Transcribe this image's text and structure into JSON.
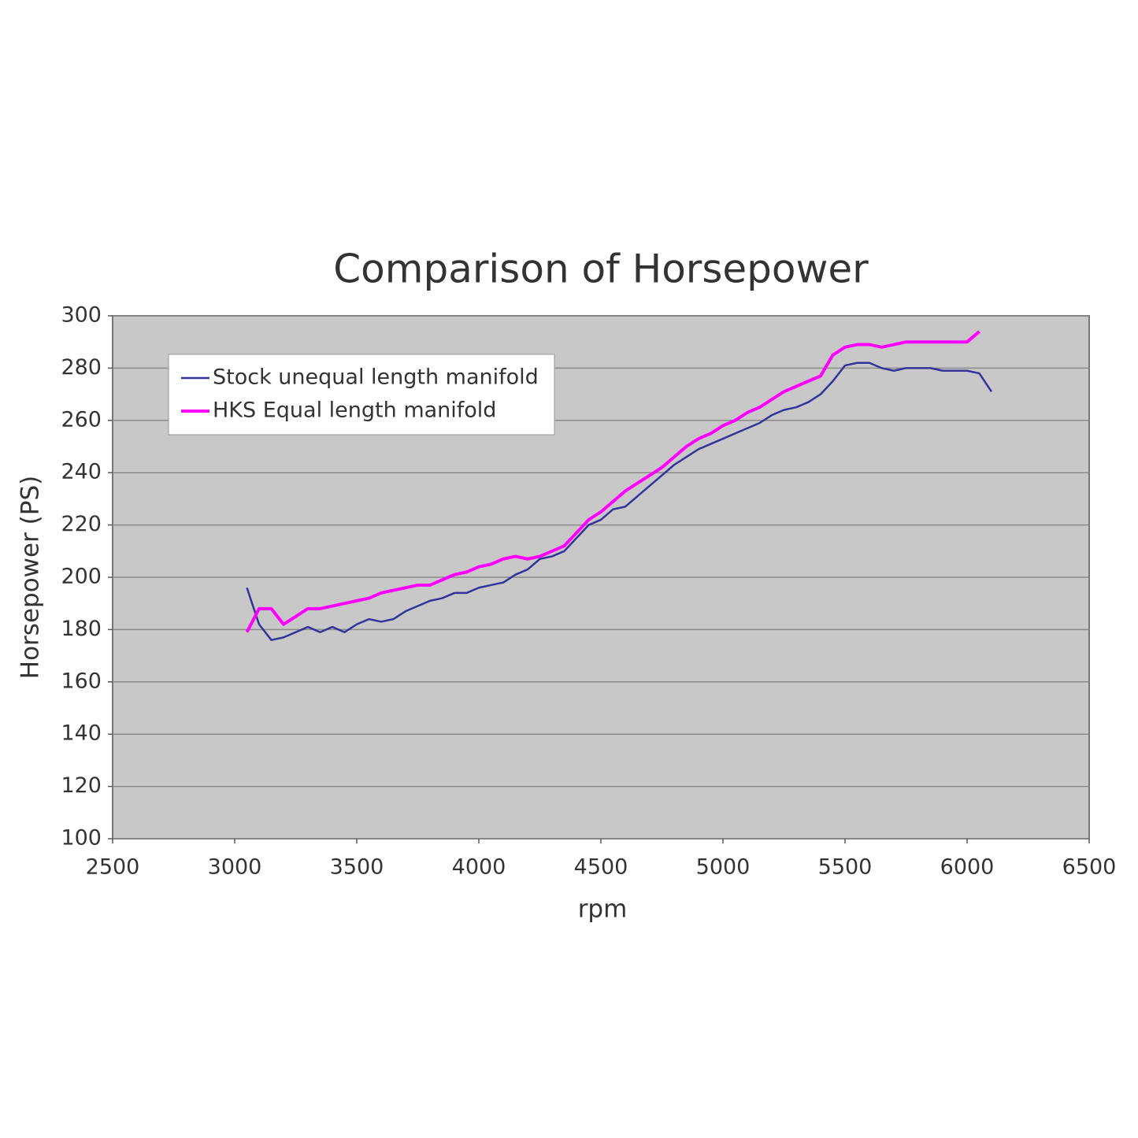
{
  "chart_data": {
    "type": "line",
    "title": "Comparison of Horsepower",
    "x_label": "rpm",
    "y_label": "Horsepower (PS)",
    "x": [
      3050,
      3100,
      3150,
      3200,
      3250,
      3300,
      3350,
      3400,
      3450,
      3500,
      3550,
      3600,
      3650,
      3700,
      3750,
      3800,
      3850,
      3900,
      3950,
      4000,
      4050,
      4100,
      4150,
      4200,
      4250,
      4300,
      4350,
      4400,
      4450,
      4500,
      4550,
      4600,
      4650,
      4700,
      4750,
      4800,
      4850,
      4900,
      4950,
      5000,
      5050,
      5100,
      5150,
      5200,
      5250,
      5300,
      5350,
      5400,
      5450,
      5500,
      5550,
      5600,
      5650,
      5700,
      5750,
      5800,
      5850,
      5900,
      5950,
      6000,
      6050,
      6100
    ],
    "series": [
      {
        "name": "Stock unequal length manifold",
        "color": "#333399",
        "values": [
          196,
          182,
          176,
          177,
          179,
          181,
          179,
          181,
          179,
          182,
          184,
          183,
          184,
          187,
          189,
          191,
          192,
          194,
          194,
          196,
          197,
          198,
          201,
          203,
          207,
          208,
          210,
          215,
          220,
          222,
          226,
          227,
          231,
          235,
          239,
          243,
          246,
          249,
          251,
          253,
          255,
          257,
          259,
          262,
          264,
          265,
          267,
          270,
          275,
          281,
          282,
          282,
          280,
          279,
          280,
          280,
          280,
          279,
          279,
          279,
          278,
          271
        ]
      },
      {
        "name": "HKS Equal length manifold",
        "color": "#ff00ff",
        "values": [
          179,
          188,
          188,
          182,
          185,
          188,
          188,
          189,
          190,
          191,
          192,
          194,
          195,
          196,
          197,
          197,
          199,
          201,
          202,
          204,
          205,
          207,
          208,
          207,
          208,
          210,
          212,
          217,
          222,
          225,
          229,
          233,
          236,
          239,
          242,
          246,
          250,
          253,
          255,
          258,
          260,
          263,
          265,
          268,
          271,
          273,
          275,
          277,
          285,
          288,
          289,
          289,
          288,
          289,
          290,
          290,
          290,
          290,
          290,
          290,
          294,
          null
        ]
      }
    ],
    "xlim": [
      2500,
      6500
    ],
    "xticks": [
      2500,
      3000,
      3500,
      4000,
      4500,
      5000,
      5500,
      6000,
      6500
    ],
    "ylim": [
      100,
      300
    ],
    "yticks": [
      100,
      120,
      140,
      160,
      180,
      200,
      220,
      240,
      260,
      280,
      300
    ],
    "grid": true,
    "legend": "top-left"
  }
}
